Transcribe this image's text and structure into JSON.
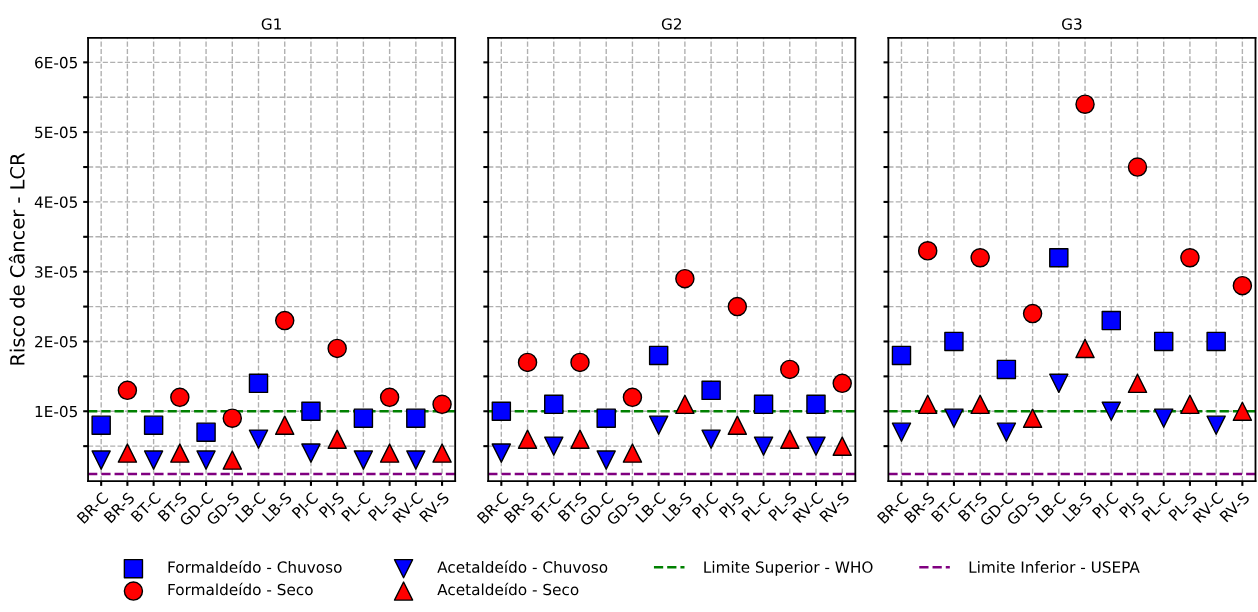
{
  "chart_data": [
    {
      "type": "scatter",
      "title": "G1",
      "ylabel": "Risco de Câncer - LCR",
      "categories": [
        "BR-C",
        "BR-S",
        "BT-C",
        "BT-S",
        "GD-C",
        "GD-S",
        "LB-C",
        "LB-S",
        "PJ-C",
        "PJ-S",
        "PL-C",
        "PL-S",
        "RV-C",
        "RV-S"
      ],
      "ylim": [
        0,
        6.35e-05
      ],
      "yticks": [
        {
          "value": 5e-06,
          "label": null
        },
        {
          "value": 1e-05,
          "label": "1E-05"
        },
        {
          "value": 1.5e-05,
          "label": null
        },
        {
          "value": 2e-05,
          "label": "2E-05"
        },
        {
          "value": 2.5e-05,
          "label": null
        },
        {
          "value": 3e-05,
          "label": "3E-05"
        },
        {
          "value": 3.5e-05,
          "label": null
        },
        {
          "value": 4e-05,
          "label": "4E-05"
        },
        {
          "value": 4.5e-05,
          "label": null
        },
        {
          "value": 5e-05,
          "label": "5E-05"
        },
        {
          "value": 5.5e-05,
          "label": null
        },
        {
          "value": 6e-05,
          "label": "6E-05"
        }
      ],
      "grid": true,
      "legend": "bottom",
      "series": [
        {
          "name": "Formaldeído - Chuvoso",
          "color": "#0000ff",
          "marker": "square",
          "values": [
            8e-06,
            null,
            8e-06,
            null,
            7e-06,
            null,
            1.4e-05,
            null,
            1e-05,
            null,
            9e-06,
            null,
            9e-06,
            null
          ]
        },
        {
          "name": "Formaldeído - Seco",
          "color": "#ff0000",
          "marker": "circle",
          "values": [
            null,
            1.3e-05,
            null,
            1.2e-05,
            null,
            9e-06,
            null,
            2.3e-05,
            null,
            1.9e-05,
            null,
            1.2e-05,
            null,
            1.1e-05
          ]
        },
        {
          "name": "Acetaldeído - Chuvoso",
          "color": "#0000ff",
          "marker": "triangle-down",
          "values": [
            3e-06,
            null,
            3e-06,
            null,
            3e-06,
            null,
            6e-06,
            null,
            4e-06,
            null,
            3e-06,
            null,
            3e-06,
            null
          ]
        },
        {
          "name": "Acetaldeído - Seco",
          "color": "#ff0000",
          "marker": "triangle",
          "values": [
            null,
            4e-06,
            null,
            4e-06,
            null,
            3e-06,
            null,
            8e-06,
            null,
            6e-06,
            null,
            4e-06,
            null,
            4e-06
          ]
        }
      ],
      "ref_lines": [
        {
          "axis": "y",
          "value": 1e-05,
          "label": "Limite Superior - WHO",
          "color": "#008000",
          "line_style": "dashed"
        },
        {
          "axis": "y",
          "value": 1e-06,
          "label": "Limite Inferior - USEPA",
          "color": "#800080",
          "line_style": "dashed"
        }
      ]
    },
    {
      "type": "scatter",
      "title": "G2",
      "tick_labels": "x",
      "categories": [
        "BR-C",
        "BR-S",
        "BT-C",
        "BT-S",
        "GD-C",
        "GD-S",
        "LB-C",
        "LB-S",
        "PJ-C",
        "PJ-S",
        "PL-C",
        "PL-S",
        "RV-C",
        "RV-S"
      ],
      "ylim": [
        0,
        6.35e-05
      ],
      "yticks": [
        {
          "value": 5e-06,
          "label": null
        },
        {
          "value": 1e-05,
          "label": null
        },
        {
          "value": 1.5e-05,
          "label": null
        },
        {
          "value": 2e-05,
          "label": null
        },
        {
          "value": 2.5e-05,
          "label": null
        },
        {
          "value": 3e-05,
          "label": null
        },
        {
          "value": 3.5e-05,
          "label": null
        },
        {
          "value": 4e-05,
          "label": null
        },
        {
          "value": 4.5e-05,
          "label": null
        },
        {
          "value": 5e-05,
          "label": null
        },
        {
          "value": 5.5e-05,
          "label": null
        },
        {
          "value": 6e-05,
          "label": null
        }
      ],
      "grid": true,
      "series": [
        {
          "color": "#0000ff",
          "marker": "square",
          "values": [
            1e-05,
            null,
            1.1e-05,
            null,
            9e-06,
            null,
            1.8e-05,
            null,
            1.3e-05,
            null,
            1.1e-05,
            null,
            1.1e-05,
            null
          ]
        },
        {
          "color": "#ff0000",
          "marker": "circle",
          "values": [
            null,
            1.7e-05,
            null,
            1.7e-05,
            null,
            1.2e-05,
            null,
            2.9e-05,
            null,
            2.5e-05,
            null,
            1.6e-05,
            null,
            1.4e-05
          ]
        },
        {
          "color": "#0000ff",
          "marker": "triangle-down",
          "values": [
            4e-06,
            null,
            5e-06,
            null,
            3e-06,
            null,
            8e-06,
            null,
            6e-06,
            null,
            5e-06,
            null,
            5e-06,
            null
          ]
        },
        {
          "color": "#ff0000",
          "marker": "triangle",
          "values": [
            null,
            6e-06,
            null,
            6e-06,
            null,
            4e-06,
            null,
            1.1e-05,
            null,
            8e-06,
            null,
            6e-06,
            null,
            5e-06
          ]
        }
      ],
      "ref_lines": [
        {
          "axis": "y",
          "value": 1e-05,
          "color": "#008000",
          "line_style": "dashed"
        },
        {
          "axis": "y",
          "value": 1e-06,
          "color": "#800080",
          "line_style": "dashed"
        }
      ]
    },
    {
      "type": "scatter",
      "title": "G3",
      "tick_labels": "x",
      "categories": [
        "BR-C",
        "BR-S",
        "BT-C",
        "BT-S",
        "GD-C",
        "GD-S",
        "LB-C",
        "LB-S",
        "PJ-C",
        "PJ-S",
        "PL-C",
        "PL-S",
        "RV-C",
        "RV-S"
      ],
      "ylim": [
        0,
        6.35e-05
      ],
      "yticks": [
        {
          "value": 5e-06,
          "label": null
        },
        {
          "value": 1e-05,
          "label": null
        },
        {
          "value": 1.5e-05,
          "label": null
        },
        {
          "value": 2e-05,
          "label": null
        },
        {
          "value": 2.5e-05,
          "label": null
        },
        {
          "value": 3e-05,
          "label": null
        },
        {
          "value": 3.5e-05,
          "label": null
        },
        {
          "value": 4e-05,
          "label": null
        },
        {
          "value": 4.5e-05,
          "label": null
        },
        {
          "value": 5e-05,
          "label": null
        },
        {
          "value": 5.5e-05,
          "label": null
        },
        {
          "value": 6e-05,
          "label": null
        }
      ],
      "grid": true,
      "series": [
        {
          "color": "#0000ff",
          "marker": "square",
          "values": [
            1.8e-05,
            null,
            2e-05,
            null,
            1.6e-05,
            null,
            3.2e-05,
            null,
            2.3e-05,
            null,
            2e-05,
            null,
            2e-05,
            null
          ]
        },
        {
          "color": "#ff0000",
          "marker": "circle",
          "values": [
            null,
            3.3e-05,
            null,
            3.2e-05,
            null,
            2.4e-05,
            null,
            5.4e-05,
            null,
            4.5e-05,
            null,
            3.2e-05,
            null,
            2.8e-05
          ]
        },
        {
          "color": "#0000ff",
          "marker": "triangle-down",
          "values": [
            7e-06,
            null,
            9e-06,
            null,
            7e-06,
            null,
            1.4e-05,
            null,
            1e-05,
            null,
            9e-06,
            null,
            8e-06,
            null
          ]
        },
        {
          "color": "#ff0000",
          "marker": "triangle",
          "values": [
            null,
            1.1e-05,
            null,
            1.1e-05,
            null,
            9e-06,
            null,
            1.9e-05,
            null,
            1.4e-05,
            null,
            1.1e-05,
            null,
            1e-05
          ]
        }
      ],
      "ref_lines": [
        {
          "axis": "y",
          "value": 1e-05,
          "color": "#008000",
          "line_style": "dashed"
        },
        {
          "axis": "y",
          "value": 1e-06,
          "color": "#800080",
          "line_style": "dashed"
        }
      ]
    }
  ]
}
